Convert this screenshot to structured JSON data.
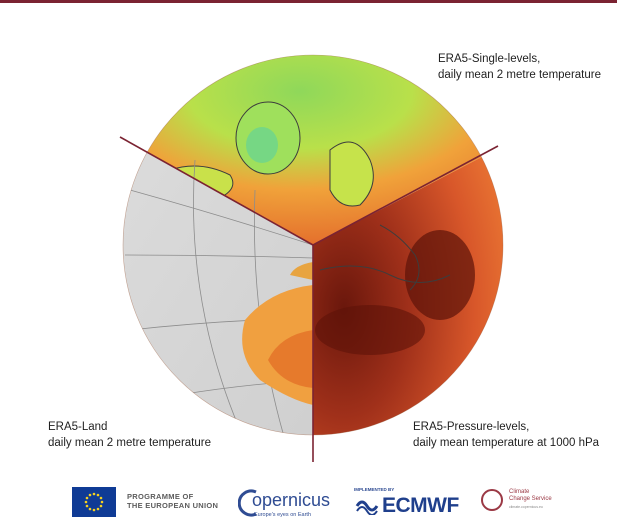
{
  "captions": {
    "single_levels": {
      "line1": "ERA5-Single-levels,",
      "line2": "daily mean 2 metre temperature"
    },
    "land": {
      "line1": "ERA5-Land",
      "line2": "daily mean 2 metre temperature"
    },
    "pressure_levels": {
      "line1": "ERA5-Pressure-levels,",
      "line2": "daily mean temperature at 1000 hPa"
    }
  },
  "logos": {
    "eu": {
      "line1": "PROGRAMME OF",
      "line2": "THE EUROPEAN UNION"
    },
    "copernicus": {
      "name": "opernicus",
      "tagline": "Europe's eyes on Earth"
    },
    "ecmwf": {
      "implemented_by": "IMPLEMENTED BY",
      "name": "ECMWF"
    },
    "c3s": {
      "line1": "Climate",
      "line2": "Change Service",
      "url": "climate.copernicus.eu"
    }
  },
  "colors": {
    "accent": "#7b2332",
    "ocean_land_grey": "#d6d6d6",
    "warm_orange": "#e8772e",
    "dark_red": "#7a1e0e",
    "cool_green": "#bde54a"
  }
}
